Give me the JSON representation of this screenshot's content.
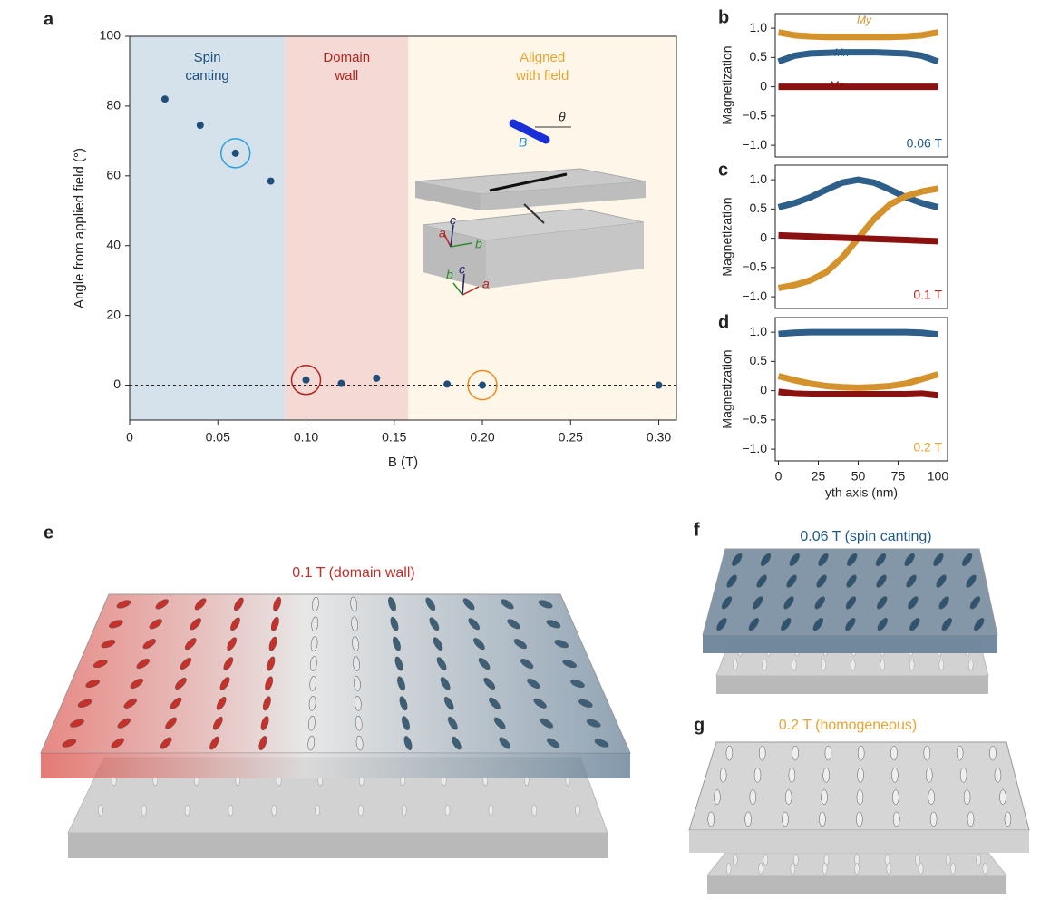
{
  "chart_data": [
    {
      "type": "scatter",
      "panel": "a",
      "x": [
        0.02,
        0.04,
        0.06,
        0.08,
        0.1,
        0.12,
        0.14,
        0.18,
        0.2,
        0.3
      ],
      "values": [
        82,
        74.5,
        66.5,
        58.5,
        1.5,
        0.5,
        2,
        0.3,
        0,
        0
      ],
      "color": "#1f4e79",
      "xlim": [
        0,
        0.31
      ],
      "ylim": [
        -10,
        100
      ],
      "xticks": [
        0,
        0.05,
        {
          "value": 0.1,
          "label": "0.10"
        },
        0.15,
        {
          "value": 0.2,
          "label": "0.20"
        },
        0.25,
        {
          "value": 0.3,
          "label": "0.30"
        }
      ],
      "yticks": [
        0,
        20,
        40,
        60,
        80,
        100
      ],
      "xlabel": "B (T)",
      "ylabel": "Angle from applied field (°)",
      "hline": 0,
      "regions": [
        {
          "label": [
            "Spin",
            "canting"
          ],
          "from": 0,
          "to": 0.088,
          "color": "#d5e2ec",
          "text_color": "#1f4e79"
        },
        {
          "label": [
            "Domain",
            "wall"
          ],
          "from": 0.088,
          "to": 0.158,
          "color": "#f4d9d5",
          "text_color": "#b0261e"
        },
        {
          "label": [
            "Aligned",
            "with field"
          ],
          "from": 0.158,
          "to": 0.31,
          "color": "#fdf6e9",
          "text_color": "#e6a532"
        }
      ],
      "highlights": [
        {
          "index": 2,
          "color": "#2aa0dc"
        },
        {
          "index": 4,
          "color": "#b0261e"
        },
        {
          "index": 8,
          "color": "#ee8a1c"
        }
      ],
      "inset_labels": [
        "B",
        "θ",
        "a",
        "c",
        "b",
        "b",
        "c",
        "a"
      ]
    },
    {
      "type": "line",
      "panel": "b",
      "annotation": "0.06 T",
      "annotation_color": "#1f5a8a",
      "x": [
        0,
        10,
        20,
        30,
        40,
        50,
        60,
        70,
        80,
        90,
        100
      ],
      "xlim": [
        -2,
        106
      ],
      "ylim": [
        -1.2,
        1.25
      ],
      "yticks": [
        {
          "value": 1,
          "label": "1.0"
        },
        0.5,
        0,
        {
          "value": -0.5,
          "label": "−0.5"
        },
        {
          "value": -1,
          "label": "−1.0"
        }
      ],
      "ylabel": "Magnetization",
      "series": [
        {
          "name": "My",
          "color": "#d4922c",
          "values": [
            0.93,
            0.88,
            0.86,
            0.85,
            0.85,
            0.85,
            0.85,
            0.85,
            0.86,
            0.88,
            0.93
          ]
        },
        {
          "name": "Mx",
          "color": "#2e5f8a",
          "values": [
            0.43,
            0.53,
            0.57,
            0.58,
            0.59,
            0.59,
            0.59,
            0.58,
            0.57,
            0.53,
            0.43
          ]
        },
        {
          "name": "Mz",
          "color": "#8b1010",
          "values": [
            0,
            0,
            0,
            0,
            0,
            0,
            0,
            0,
            0,
            0,
            0
          ]
        }
      ]
    },
    {
      "type": "line",
      "panel": "c",
      "annotation": "0.1 T",
      "annotation_color": "#b0261e",
      "x": [
        0,
        10,
        20,
        30,
        40,
        50,
        60,
        70,
        80,
        90,
        100
      ],
      "xlim": [
        -2,
        106
      ],
      "ylim": [
        -1.2,
        1.25
      ],
      "yticks": [
        {
          "value": 1,
          "label": "1.0"
        },
        0.5,
        0,
        {
          "value": -0.5,
          "label": "−0.5"
        },
        {
          "value": -1,
          "label": "−1.0"
        }
      ],
      "ylabel": "Magnetization",
      "series": [
        {
          "color": "#2e5f8a",
          "values": [
            0.53,
            0.6,
            0.7,
            0.83,
            0.95,
            1.0,
            0.95,
            0.83,
            0.7,
            0.6,
            0.53
          ]
        },
        {
          "color": "#d4922c",
          "values": [
            -0.85,
            -0.8,
            -0.72,
            -0.58,
            -0.33,
            0,
            0.33,
            0.58,
            0.72,
            0.8,
            0.85
          ]
        },
        {
          "color": "#8b1010",
          "values": [
            0.05,
            0.04,
            0.03,
            0.02,
            0.01,
            0,
            -0.01,
            -0.02,
            -0.03,
            -0.04,
            -0.05
          ]
        }
      ]
    },
    {
      "type": "line",
      "panel": "d",
      "annotation": "0.2 T",
      "annotation_color": "#e6a532",
      "x": [
        0,
        10,
        20,
        30,
        40,
        50,
        60,
        70,
        80,
        90,
        100
      ],
      "xlim": [
        -2,
        106
      ],
      "ylim": [
        -1.2,
        1.25
      ],
      "xticks": [
        0,
        25,
        50,
        75,
        100
      ],
      "yticks": [
        {
          "value": 1,
          "label": "1.0"
        },
        0.5,
        0,
        {
          "value": -0.5,
          "label": "−0.5"
        },
        {
          "value": -1,
          "label": "−1.0"
        }
      ],
      "xlabel": "yth axis (nm)",
      "ylabel": "Magnetization",
      "series": [
        {
          "color": "#2e5f8a",
          "values": [
            0.97,
            0.99,
            1.0,
            1.0,
            1.0,
            1.0,
            1.0,
            1.0,
            1.0,
            0.99,
            0.96
          ]
        },
        {
          "color": "#d4922c",
          "values": [
            0.25,
            0.18,
            0.12,
            0.08,
            0.06,
            0.05,
            0.06,
            0.08,
            0.12,
            0.2,
            0.28
          ]
        },
        {
          "color": "#8b1010",
          "values": [
            -0.02,
            -0.05,
            -0.06,
            -0.06,
            -0.06,
            -0.06,
            -0.06,
            -0.06,
            -0.06,
            -0.05,
            -0.08
          ]
        }
      ]
    }
  ],
  "illustrations": [
    {
      "panel": "e",
      "title": "0.1 T (domain wall)",
      "color": "#c0302a"
    },
    {
      "panel": "f",
      "title": "0.06 T (spin canting)",
      "color": "#1f5a8a"
    },
    {
      "panel": "g",
      "title": "0.2 T (homogeneous)",
      "color": "#e6a532"
    }
  ]
}
